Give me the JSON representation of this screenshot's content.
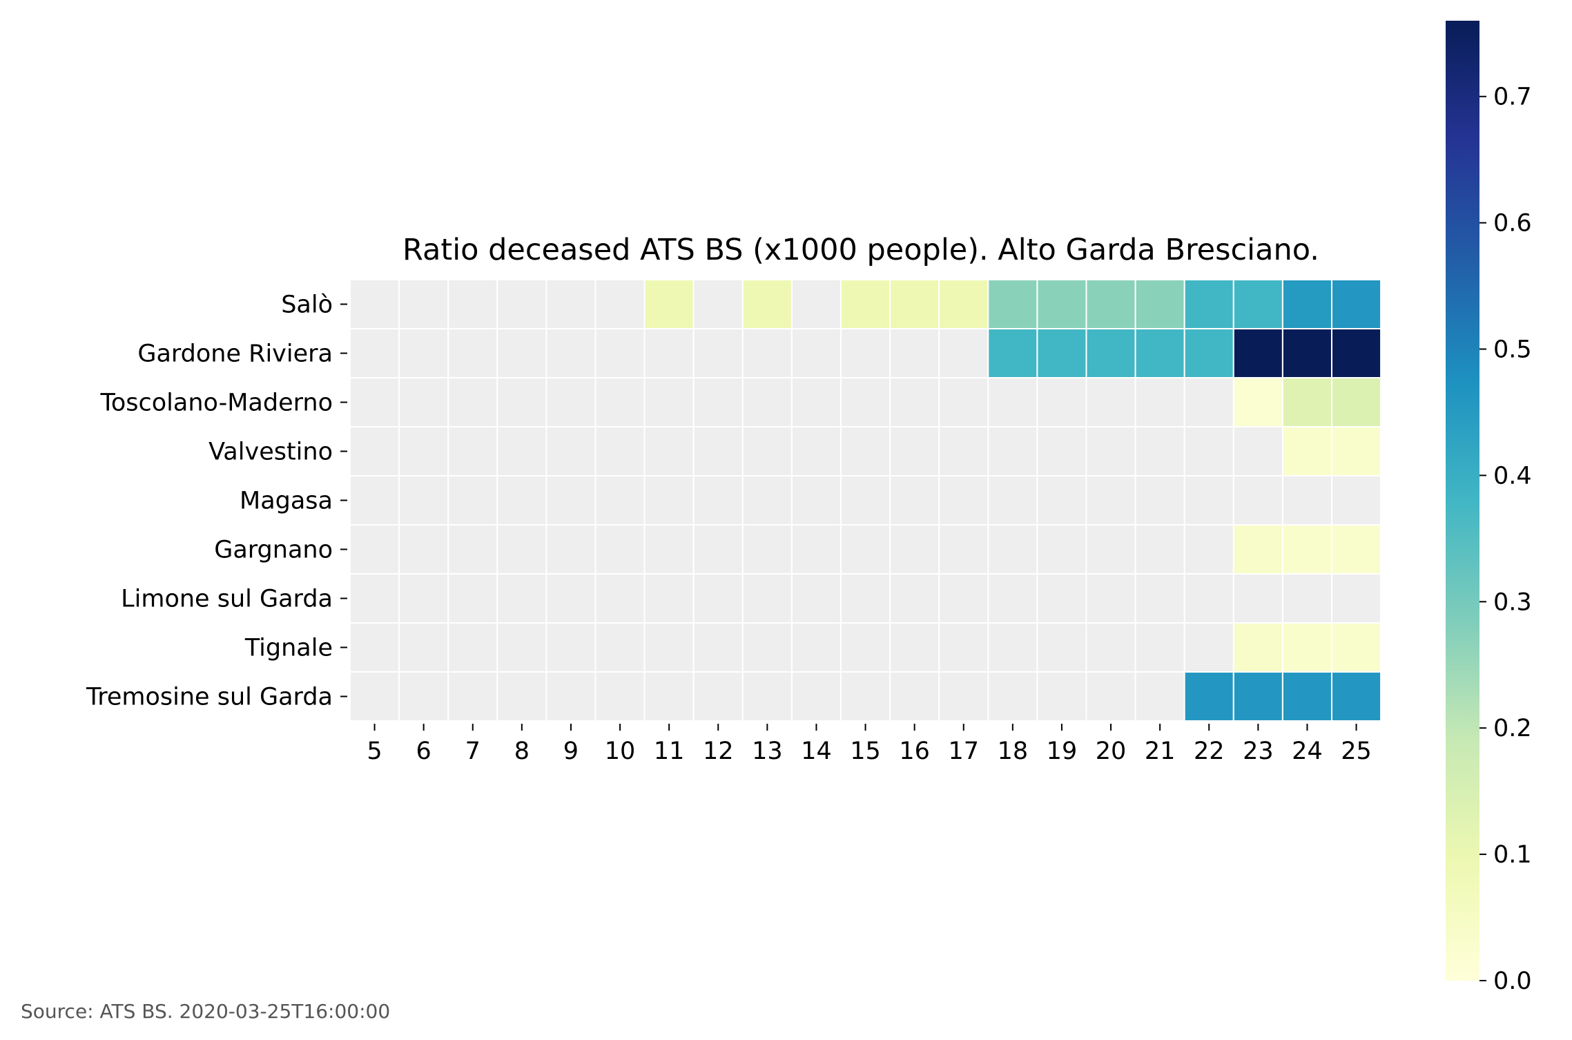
{
  "chart_data": {
    "type": "heatmap",
    "title": "Ratio deceased ATS BS (x1000 people). Alto Garda Bresciano.",
    "xlabel": "",
    "ylabel": "",
    "x": [
      "5",
      "6",
      "7",
      "8",
      "9",
      "10",
      "11",
      "12",
      "13",
      "14",
      "15",
      "16",
      "17",
      "18",
      "19",
      "20",
      "21",
      "22",
      "23",
      "24",
      "25"
    ],
    "y": [
      "Salò",
      "Gardone Riviera",
      "Toscolano-Maderno",
      "Valvestino",
      "Magasa",
      "Gargnano",
      "Limone sul Garda",
      "Tignale",
      "Tremosine sul Garda"
    ],
    "values": [
      [
        null,
        null,
        null,
        null,
        null,
        null,
        0.09,
        null,
        0.09,
        null,
        0.09,
        0.09,
        0.09,
        0.27,
        0.27,
        0.27,
        0.27,
        0.38,
        0.38,
        0.45,
        0.46
      ],
      [
        null,
        null,
        null,
        null,
        null,
        null,
        null,
        null,
        null,
        null,
        null,
        null,
        null,
        0.38,
        0.38,
        0.38,
        0.38,
        0.38,
        0.76,
        0.76,
        0.76
      ],
      [
        null,
        null,
        null,
        null,
        null,
        null,
        null,
        null,
        null,
        null,
        null,
        null,
        null,
        null,
        null,
        null,
        null,
        null,
        0.02,
        0.13,
        0.14
      ],
      [
        null,
        null,
        null,
        null,
        null,
        null,
        null,
        null,
        null,
        null,
        null,
        null,
        null,
        null,
        null,
        null,
        null,
        null,
        null,
        0.03,
        0.03
      ],
      [
        null,
        null,
        null,
        null,
        null,
        null,
        null,
        null,
        null,
        null,
        null,
        null,
        null,
        null,
        null,
        null,
        null,
        null,
        null,
        null,
        null
      ],
      [
        null,
        null,
        null,
        null,
        null,
        null,
        null,
        null,
        null,
        null,
        null,
        null,
        null,
        null,
        null,
        null,
        null,
        null,
        0.04,
        0.03,
        0.03
      ],
      [
        null,
        null,
        null,
        null,
        null,
        null,
        null,
        null,
        null,
        null,
        null,
        null,
        null,
        null,
        null,
        null,
        null,
        null,
        null,
        null,
        null
      ],
      [
        null,
        null,
        null,
        null,
        null,
        null,
        null,
        null,
        null,
        null,
        null,
        null,
        null,
        null,
        null,
        null,
        null,
        null,
        0.04,
        0.03,
        0.03
      ],
      [
        null,
        null,
        null,
        null,
        null,
        null,
        null,
        null,
        null,
        null,
        null,
        null,
        null,
        null,
        null,
        null,
        null,
        0.46,
        0.46,
        0.46,
        0.46
      ]
    ],
    "missing_color": "#eeeeee",
    "grid_color": "#ffffff",
    "colormap": "YlGnBu",
    "colorbar": {
      "vmin": 0.0,
      "vmax": 0.76,
      "ticks": [
        0.0,
        0.1,
        0.2,
        0.3,
        0.4,
        0.5,
        0.6,
        0.7
      ],
      "tick_labels": [
        "0.0",
        "0.1",
        "0.2",
        "0.3",
        "0.4",
        "0.5",
        "0.6",
        "0.7"
      ]
    }
  },
  "footer": {
    "source": "Source: ATS BS. 2020-03-25T16:00:00"
  }
}
